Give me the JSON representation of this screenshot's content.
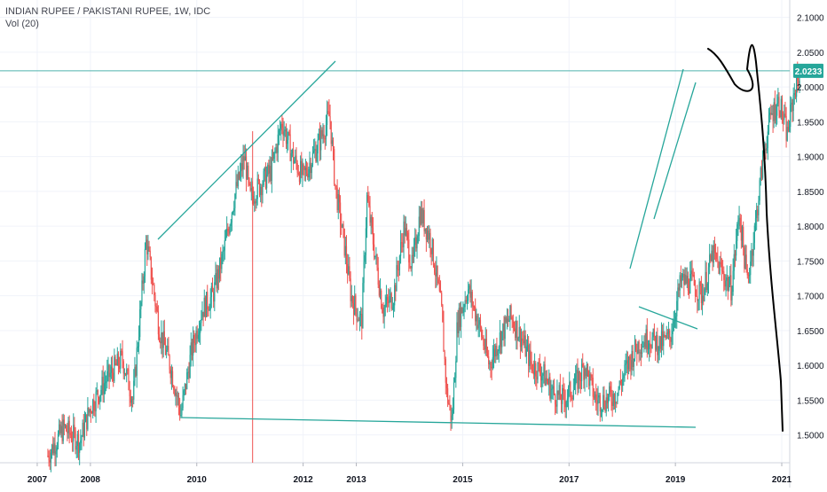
{
  "legend": {
    "title": "INDIAN RUPEE / PAKISTANI RUPEE, 1W, IDC",
    "volume": "Vol (20)"
  },
  "price_badge": "2.0233",
  "colors": {
    "up": "#26a69a",
    "down": "#ef5350",
    "trendline": "#26a69a",
    "hline": "#4fb3ad",
    "vline": "#ef5350",
    "badge": "#26a69a",
    "grid": "#f0f3fa",
    "axis_text": "#131722",
    "sketch": "#000000"
  },
  "chart_data": {
    "type": "candlestick",
    "symbol": "INDIAN RUPEE / PAKISTANI RUPEE",
    "interval": "1W",
    "source": "IDC",
    "x_ticks": [
      "2007",
      "2008",
      "2010",
      "2012",
      "2013",
      "2015",
      "2017",
      "2019",
      "2021"
    ],
    "y_ticks": [
      "1.5000",
      "1.5500",
      "1.6000",
      "1.6500",
      "1.7000",
      "1.7500",
      "1.8000",
      "1.8500",
      "1.9000",
      "1.9500",
      "2.0000",
      "2.0500",
      "2.1000"
    ],
    "ylim": [
      1.46,
      2.125
    ],
    "xlim": [
      2006.3,
      2021.15
    ],
    "grid": true,
    "last_price": 2.0233,
    "price_path": [
      [
        2007.2,
        1.47
      ],
      [
        2007.5,
        1.51
      ],
      [
        2007.8,
        1.49
      ],
      [
        2008.0,
        1.54
      ],
      [
        2008.3,
        1.58
      ],
      [
        2008.6,
        1.61
      ],
      [
        2008.8,
        1.55
      ],
      [
        2009.05,
        1.78
      ],
      [
        2009.3,
        1.65
      ],
      [
        2009.5,
        1.6
      ],
      [
        2009.7,
        1.53
      ],
      [
        2009.9,
        1.62
      ],
      [
        2010.1,
        1.68
      ],
      [
        2010.3,
        1.7
      ],
      [
        2010.5,
        1.76
      ],
      [
        2010.7,
        1.84
      ],
      [
        2010.9,
        1.9
      ],
      [
        2011.0,
        1.84
      ],
      [
        2011.2,
        1.86
      ],
      [
        2011.4,
        1.88
      ],
      [
        2011.6,
        1.95
      ],
      [
        2011.8,
        1.9
      ],
      [
        2012.0,
        1.87
      ],
      [
        2012.3,
        1.92
      ],
      [
        2012.5,
        1.96
      ],
      [
        2012.6,
        1.86
      ],
      [
        2012.8,
        1.76
      ],
      [
        2012.9,
        1.7
      ],
      [
        2013.1,
        1.66
      ],
      [
        2013.2,
        1.84
      ],
      [
        2013.35,
        1.76
      ],
      [
        2013.5,
        1.68
      ],
      [
        2013.7,
        1.7
      ],
      [
        2013.9,
        1.8
      ],
      [
        2014.05,
        1.74
      ],
      [
        2014.2,
        1.82
      ],
      [
        2014.4,
        1.78
      ],
      [
        2014.6,
        1.68
      ],
      [
        2014.7,
        1.56
      ],
      [
        2014.8,
        1.52
      ],
      [
        2014.9,
        1.66
      ],
      [
        2015.1,
        1.71
      ],
      [
        2015.3,
        1.66
      ],
      [
        2015.5,
        1.6
      ],
      [
        2015.7,
        1.64
      ],
      [
        2015.9,
        1.67
      ],
      [
        2016.1,
        1.64
      ],
      [
        2016.3,
        1.6
      ],
      [
        2016.5,
        1.59
      ],
      [
        2016.7,
        1.56
      ],
      [
        2016.9,
        1.55
      ],
      [
        2017.1,
        1.57
      ],
      [
        2017.3,
        1.6
      ],
      [
        2017.5,
        1.55
      ],
      [
        2017.7,
        1.55
      ],
      [
        2017.9,
        1.56
      ],
      [
        2018.1,
        1.6
      ],
      [
        2018.3,
        1.63
      ],
      [
        2018.5,
        1.64
      ],
      [
        2018.7,
        1.63
      ],
      [
        2018.9,
        1.64
      ],
      [
        2019.1,
        1.72
      ],
      [
        2019.3,
        1.72
      ],
      [
        2019.5,
        1.7
      ],
      [
        2019.7,
        1.76
      ],
      [
        2019.9,
        1.73
      ],
      [
        2020.05,
        1.71
      ],
      [
        2020.2,
        1.82
      ],
      [
        2020.35,
        1.72
      ],
      [
        2020.5,
        1.8
      ],
      [
        2020.65,
        1.9
      ],
      [
        2020.8,
        1.96
      ],
      [
        2020.95,
        1.98
      ],
      [
        2021.1,
        1.93
      ],
      [
        2021.25,
        2.0
      ],
      [
        2021.35,
        2.02
      ]
    ],
    "drawings": {
      "horizontal_line": 2.0233,
      "vertical_line_x": 2011.05
    }
  }
}
